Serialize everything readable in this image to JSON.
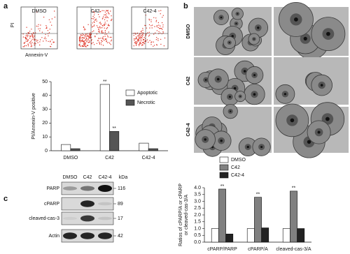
{
  "panel_labels": [
    "a",
    "b",
    "c"
  ],
  "flow_cytometry": {
    "conditions": [
      "DMSO",
      "C42",
      "C42-4"
    ],
    "y_label": "PI",
    "x_label": "Annexin-V"
  },
  "microscopy": {
    "rows": [
      "DMSO",
      "C42",
      "C42-4"
    ]
  },
  "western_blot": {
    "lanes": [
      "DMSO",
      "C42",
      "C42-4"
    ],
    "unit": "kDa",
    "rows": [
      {
        "protein": "PARP",
        "kda": 116
      },
      {
        "protein": "cPARP",
        "kda": 89
      },
      {
        "protein": "cleaved-cas-3",
        "kda": 17
      },
      {
        "protein": "Actin",
        "kda": 42
      }
    ]
  },
  "chart_data": [
    {
      "type": "bar",
      "y_label": [
        "PI/Annexin-V positive"
      ],
      "categories": [
        "DMSO",
        "C42",
        "C42-4"
      ],
      "series": [
        {
          "name": "Apoptotic",
          "color": "#ffffff",
          "values": [
            4.5,
            48,
            5.5
          ],
          "annotations": [
            null,
            "**",
            null
          ]
        },
        {
          "name": "Necrotic",
          "color": "#555555",
          "values": [
            1.5,
            14,
            1.5
          ],
          "annotations": [
            null,
            "**",
            null
          ]
        }
      ],
      "ylim": [
        0,
        50
      ],
      "yticks": [
        0,
        10,
        20,
        30,
        40,
        50
      ],
      "legend": "upper right"
    },
    {
      "type": "bar",
      "y_label": [
        "Ratios of cPARP/A or cPARP",
        "or cleaved-cas-3/A"
      ],
      "categories": [
        "cPARP/PARP",
        "cPARP/A",
        "cleaved-cas-3/A"
      ],
      "series": [
        {
          "name": "DMSO",
          "color": "#ffffff",
          "values": [
            1,
            1,
            1
          ],
          "annotations": [
            null,
            null,
            null
          ]
        },
        {
          "name": "C42",
          "color": "#808080",
          "values": [
            3.9,
            3.3,
            3.75
          ],
          "annotations": [
            "**",
            "**",
            "**"
          ]
        },
        {
          "name": "C42-4",
          "color": "#222222",
          "values": [
            0.6,
            1.05,
            1.0
          ],
          "annotations": [
            null,
            null,
            null
          ]
        }
      ],
      "ylim": [
        0,
        4
      ],
      "yticks": [
        {
          "value": 0,
          "label": "0.0"
        },
        {
          "value": 0.5,
          "label": "0.5"
        },
        {
          "value": 1,
          "label": "1.0"
        },
        {
          "value": 1.5,
          "label": "1.5"
        },
        {
          "value": 2,
          "label": "2.0"
        },
        {
          "value": 2.5,
          "label": "2.5"
        },
        {
          "value": 3,
          "label": "3.0"
        },
        {
          "value": 3.5,
          "label": "3.5"
        },
        {
          "value": 4,
          "label": "4.0"
        }
      ],
      "legend": "top"
    }
  ]
}
